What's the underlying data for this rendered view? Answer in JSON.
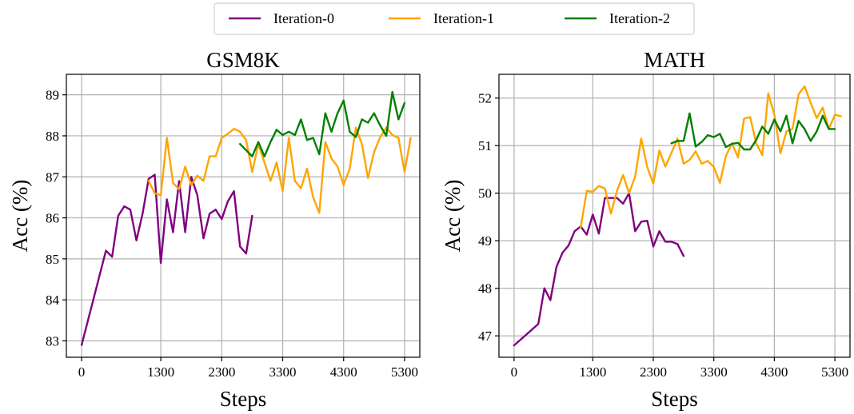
{
  "legend": {
    "placement": "top-center",
    "entries": [
      {
        "label": "Iteration-0",
        "color": "#800080"
      },
      {
        "label": "Iteration-1",
        "color": "#FFA500"
      },
      {
        "label": "Iteration-2",
        "color": "#008000"
      }
    ]
  },
  "chart_data": [
    {
      "type": "line",
      "title": "GSM8K",
      "xlabel": "Steps",
      "ylabel": "Acc (%)",
      "xlim": [
        -250,
        5550
      ],
      "ylim": [
        82.6,
        89.5
      ],
      "xticks": [
        0,
        1300,
        2300,
        3300,
        4300,
        5300
      ],
      "yticks": [
        83,
        84,
        85,
        86,
        87,
        88,
        89
      ],
      "grid": true,
      "series": [
        {
          "name": "Iteration-0",
          "color": "#800080",
          "x": [
            0,
            400,
            500,
            600,
            700,
            800,
            900,
            1000,
            1100,
            1200,
            1300,
            1400,
            1500,
            1600,
            1700,
            1800,
            1900,
            2000,
            2100,
            2200,
            2300,
            2400,
            2500,
            2600,
            2700,
            2800
          ],
          "y": [
            82.9,
            85.2,
            85.05,
            86.05,
            86.28,
            86.2,
            85.45,
            86.1,
            86.95,
            87.05,
            84.9,
            86.45,
            85.65,
            86.9,
            85.65,
            87.0,
            86.55,
            85.5,
            86.1,
            86.2,
            85.97,
            86.4,
            86.65,
            85.3,
            85.13,
            86.05
          ]
        },
        {
          "name": "Iteration-1",
          "color": "#FFA500",
          "x": [
            1100,
            1200,
            1300,
            1400,
            1500,
            1600,
            1700,
            1800,
            1900,
            2000,
            2100,
            2200,
            2300,
            2400,
            2500,
            2600,
            2700,
            2800,
            2900,
            3000,
            3100,
            3200,
            3300,
            3400,
            3500,
            3600,
            3700,
            3800,
            3900,
            4000,
            4100,
            4200,
            4300,
            4400,
            4500,
            4600,
            4700,
            4800,
            4900,
            5000,
            5100,
            5200,
            5300,
            5400
          ],
          "y": [
            86.9,
            86.6,
            86.55,
            87.95,
            86.85,
            86.7,
            87.25,
            86.8,
            87.03,
            86.9,
            87.5,
            87.5,
            87.95,
            88.05,
            88.17,
            88.1,
            87.9,
            87.12,
            87.8,
            87.35,
            86.9,
            87.35,
            86.65,
            87.95,
            86.9,
            86.72,
            87.2,
            86.5,
            86.12,
            87.85,
            87.45,
            87.25,
            86.8,
            87.2,
            88.2,
            87.8,
            86.97,
            87.6,
            87.97,
            88.2,
            88.02,
            87.95,
            87.12,
            87.95
          ]
        },
        {
          "name": "Iteration-2",
          "color": "#008000",
          "x": [
            2600,
            2800,
            2900,
            3000,
            3100,
            3200,
            3300,
            3400,
            3500,
            3600,
            3700,
            3800,
            3900,
            4000,
            4100,
            4200,
            4300,
            4400,
            4500,
            4600,
            4700,
            4800,
            4900,
            5000,
            5100,
            5200,
            5300
          ],
          "y": [
            87.8,
            87.5,
            87.85,
            87.5,
            87.85,
            88.15,
            88.02,
            88.1,
            88.02,
            88.4,
            87.9,
            87.95,
            87.55,
            88.55,
            88.1,
            88.55,
            88.86,
            88.1,
            87.97,
            88.4,
            88.32,
            88.55,
            88.25,
            88.0,
            89.07,
            88.4,
            88.8
          ]
        }
      ]
    },
    {
      "type": "line",
      "title": "MATH",
      "xlabel": "Steps",
      "ylabel": "Acc (%)",
      "xlim": [
        -250,
        5550
      ],
      "ylim": [
        46.55,
        52.5
      ],
      "xticks": [
        0,
        1300,
        2300,
        3300,
        4300,
        5300
      ],
      "yticks": [
        47,
        48,
        49,
        50,
        51,
        52
      ],
      "grid": true,
      "series": [
        {
          "name": "Iteration-0",
          "color": "#800080",
          "x": [
            0,
            400,
            500,
            600,
            700,
            800,
            900,
            1000,
            1100,
            1200,
            1300,
            1400,
            1500,
            1600,
            1700,
            1800,
            1900,
            2000,
            2100,
            2200,
            2300,
            2400,
            2500,
            2600,
            2700,
            2800
          ],
          "y": [
            46.8,
            47.25,
            48.0,
            47.75,
            48.45,
            48.75,
            48.9,
            49.2,
            49.3,
            49.13,
            49.55,
            49.15,
            49.9,
            49.9,
            49.9,
            49.78,
            50.0,
            49.2,
            49.4,
            49.42,
            48.88,
            49.2,
            48.98,
            48.98,
            48.93,
            48.68
          ]
        },
        {
          "name": "Iteration-1",
          "color": "#FFA500",
          "x": [
            1100,
            1200,
            1300,
            1400,
            1500,
            1600,
            1700,
            1800,
            1900,
            2000,
            2100,
            2200,
            2300,
            2400,
            2500,
            2600,
            2700,
            2800,
            2900,
            3000,
            3100,
            3200,
            3300,
            3400,
            3500,
            3600,
            3700,
            3800,
            3900,
            4000,
            4100,
            4200,
            4300,
            4400,
            4500,
            4600,
            4700,
            4800,
            4900,
            5000,
            5100,
            5200,
            5300,
            5400
          ],
          "y": [
            49.28,
            50.05,
            50.03,
            50.15,
            50.1,
            49.57,
            50.05,
            50.38,
            50.0,
            50.35,
            51.15,
            50.55,
            50.2,
            50.9,
            50.56,
            50.85,
            51.15,
            50.62,
            50.7,
            50.88,
            50.62,
            50.68,
            50.55,
            50.22,
            50.78,
            51.05,
            50.75,
            51.57,
            51.6,
            51.05,
            50.8,
            52.1,
            51.65,
            50.84,
            51.3,
            51.35,
            52.08,
            52.25,
            51.9,
            51.58,
            51.8,
            51.35,
            51.65,
            51.62
          ]
        },
        {
          "name": "Iteration-2",
          "color": "#008000",
          "x": [
            2600,
            2700,
            2800,
            2900,
            3000,
            3100,
            3200,
            3300,
            3400,
            3500,
            3600,
            3700,
            3800,
            3900,
            4000,
            4100,
            4200,
            4300,
            4400,
            4500,
            4600,
            4700,
            4800,
            4900,
            5000,
            5100,
            5200,
            5300
          ],
          "y": [
            51.05,
            51.1,
            51.1,
            51.68,
            50.98,
            51.08,
            51.22,
            51.18,
            51.25,
            50.97,
            51.04,
            51.06,
            50.92,
            50.92,
            51.12,
            51.4,
            51.25,
            51.55,
            51.3,
            51.63,
            51.05,
            51.52,
            51.35,
            51.1,
            51.3,
            51.63,
            51.35,
            51.35
          ]
        }
      ]
    }
  ]
}
